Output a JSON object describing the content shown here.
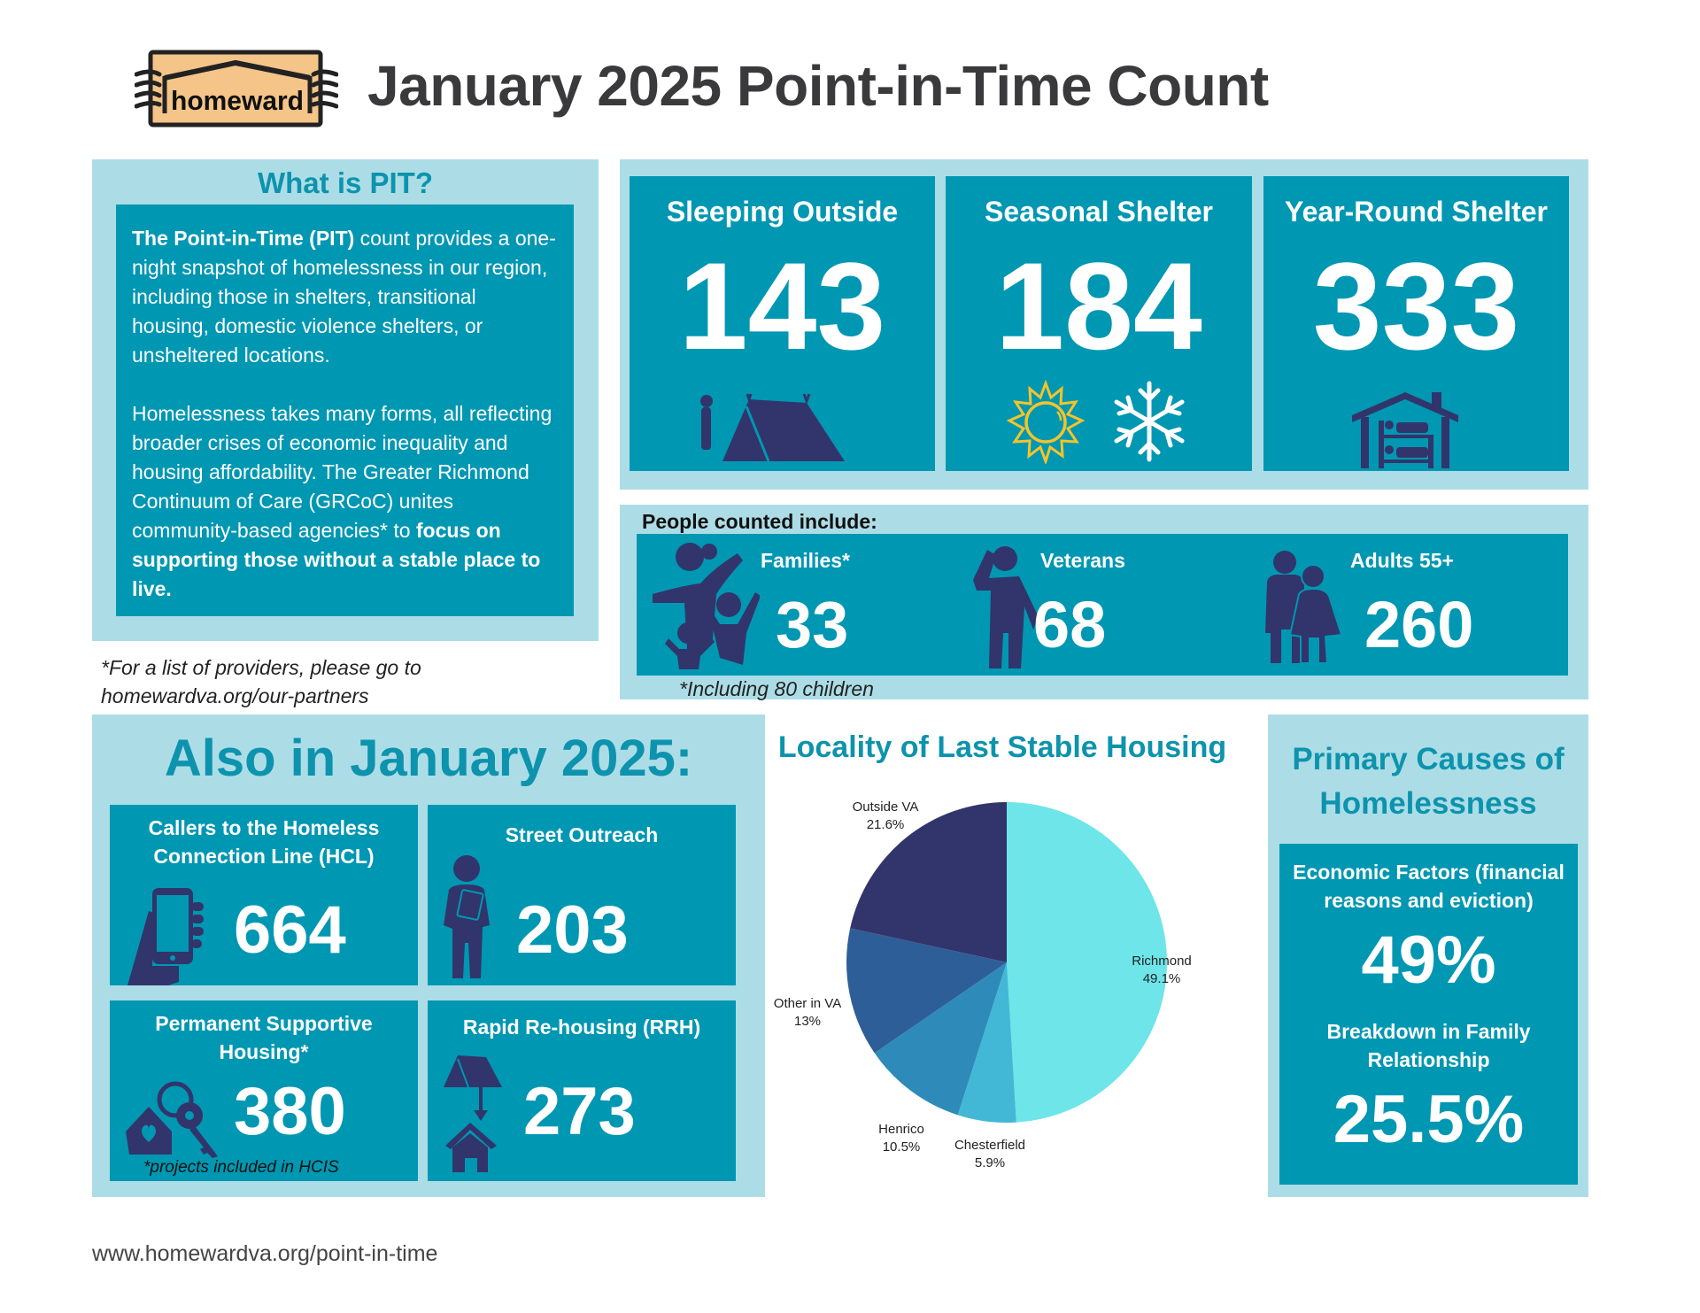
{
  "header": {
    "logo_text": "homeward",
    "title": "January 2025 Point-in-Time Count"
  },
  "what_is_pit": {
    "heading": "What is PIT?",
    "paragraph1_bold": "The Point-in-Time (PIT)",
    "paragraph1_rest": " count provides a one-night snapshot of homelessness in our region, including those in shelters, transitional housing, domestic violence shelters, or unsheltered locations.",
    "paragraph2_start": "Homelessness takes many forms, all reflecting broader crises of economic inequality and housing affordability. The Greater Richmond Continuum of Care (GRCoC) unites community-based agencies* to ",
    "paragraph2_bold": "focus on supporting those without a stable place to live.",
    "footnote": "*For a list of providers, please go to homewardva.org/our-partners"
  },
  "stats": [
    {
      "label": "Sleeping Outside",
      "value": "143",
      "icon": "tent-person-icon"
    },
    {
      "label": "Seasonal Shelter",
      "value": "184",
      "icon": "sun-snowflake-icon"
    },
    {
      "label": "Year-Round Shelter",
      "value": "333",
      "icon": "house-bunkbed-icon"
    }
  ],
  "people_counted": {
    "heading": "People counted include:",
    "items": [
      {
        "label": "Families*",
        "value": "33",
        "icon": "family-icon"
      },
      {
        "label": "Veterans",
        "value": "68",
        "icon": "veteran-salute-icon"
      },
      {
        "label": "Adults 55+",
        "value": "260",
        "icon": "older-couple-icon"
      }
    ],
    "footnote": "*Including 80 children"
  },
  "also_in_january": {
    "heading": "Also in January 2025:",
    "items": [
      {
        "label": "Callers to the Homeless Connection Line (HCL)",
        "value": "664",
        "icon": "hand-phone-icon"
      },
      {
        "label": "Street Outreach",
        "value": "203",
        "icon": "outreach-worker-icon"
      },
      {
        "label": "Permanent Supportive Housing*",
        "value": "380",
        "icon": "house-keys-icon",
        "footnote": "*projects included in HCIS"
      },
      {
        "label": "Rapid Re-housing (RRH)",
        "value": "273",
        "icon": "tent-to-house-icon"
      }
    ]
  },
  "chart_data": {
    "type": "pie",
    "title": "Locality of Last Stable Housing",
    "categories": [
      "Richmond",
      "Chesterfield",
      "Henrico",
      "Other in VA",
      "Outside VA"
    ],
    "values": [
      49.1,
      5.9,
      10.5,
      13,
      21.6
    ],
    "labels": [
      "49.1%",
      "5.9%",
      "10.5%",
      "13%",
      "21.6%"
    ],
    "colors": [
      "#6ee5e9",
      "#42b8d6",
      "#2e8bb9",
      "#2e5e97",
      "#31356b"
    ],
    "start_angle": "12 o'clock, clockwise",
    "legend": "none (direct labels)"
  },
  "causes": {
    "heading": "Primary Causes of Homelessness",
    "items": [
      {
        "label": "Economic Factors (financial reasons and eviction)",
        "value": "49%"
      },
      {
        "label": "Breakdown in Family Relationship",
        "value": "25.5%"
      }
    ]
  },
  "footer": {
    "url": "www.homewardva.org/point-in-time"
  },
  "colors": {
    "panel_light": "#acdde6",
    "panel_dark": "#0097b2",
    "icon_navy": "#31356b",
    "heading_teal": "#0d93ad",
    "logo_tan": "#f4c488",
    "sun_yellow": "#f2c42c"
  }
}
